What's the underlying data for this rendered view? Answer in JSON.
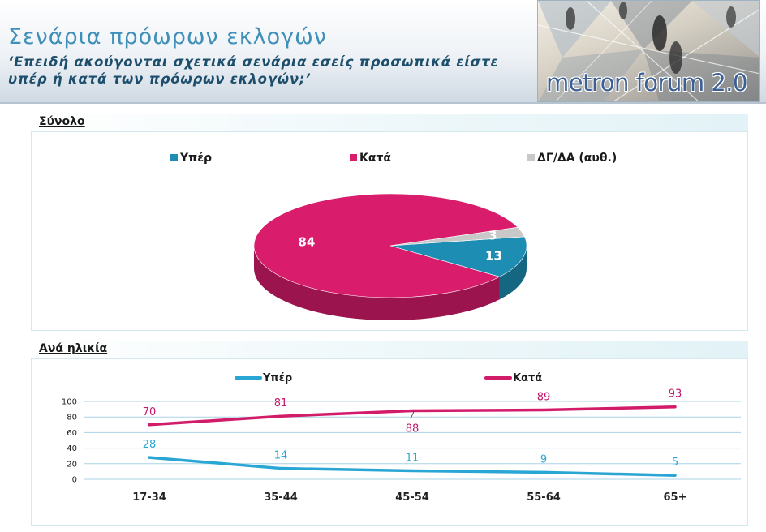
{
  "header": {
    "title": "Σενάρια πρόωρων εκλογών",
    "subtitle_line1": "‘Επειδή ακούγονται σχετικά σενάρια εσείς προσωπικά είστε",
    "subtitle_line2": "υπέρ ή κατά των πρόωρων εκλογών;’",
    "logo_text": "metron forum 2.0"
  },
  "sections": {
    "total_label": "Σύνολο",
    "age_label": "Ανά ηλικία"
  },
  "colors": {
    "yper": "#1d8db3",
    "kata": "#d91c6c",
    "dgda": "#c8c8c8",
    "line_yper": "#2aa6d4",
    "line_kata": "#d21c6a"
  },
  "chart_data": [
    {
      "type": "pie",
      "title": "Σύνολο",
      "categories": [
        "Υπέρ",
        "Κατά",
        "ΔΓ/ΔΑ (αυθ.)"
      ],
      "values": [
        13,
        84,
        3
      ],
      "legend": "top",
      "style": "3d"
    },
    {
      "type": "line",
      "title": "Ανά ηλικία",
      "categories": [
        "17-34",
        "35-44",
        "45-54",
        "55-64",
        "65+"
      ],
      "series": [
        {
          "name": "Υπέρ",
          "values": [
            28,
            14,
            11,
            9,
            5
          ]
        },
        {
          "name": "Κατά",
          "values": [
            70,
            81,
            88,
            89,
            93
          ]
        }
      ],
      "ylim": [
        0,
        100
      ],
      "yticks": [
        "0",
        "20",
        "40",
        "60",
        "80",
        "100"
      ],
      "grid": true,
      "legend": "top"
    }
  ]
}
